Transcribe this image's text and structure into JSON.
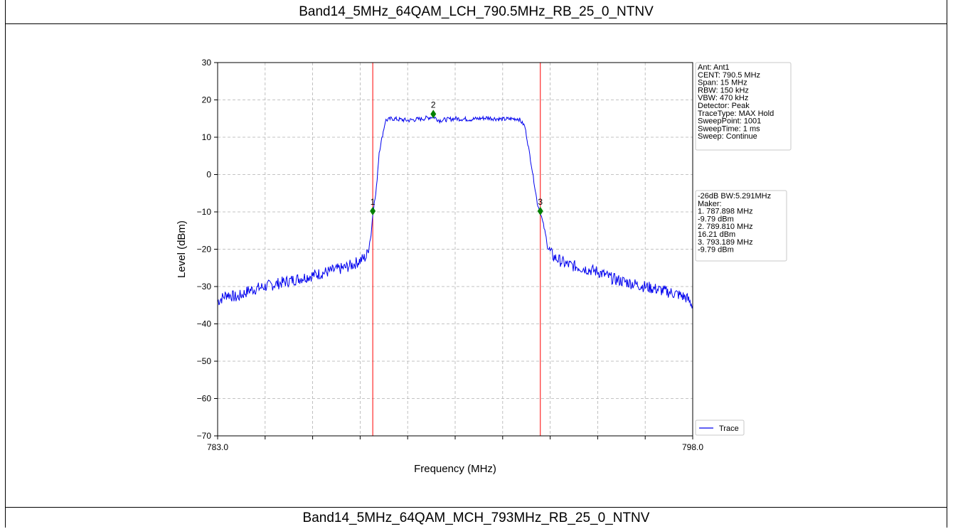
{
  "header": {
    "title": "Band14_5MHz_64QAM_LCH_790.5MHz_RB_25_0_NTNV"
  },
  "footer": {
    "title": "Band14_5MHz_64QAM_MCH_793MHz_RB_25_0_NTNV"
  },
  "colors": {
    "trace": "#0000ee",
    "marker": "#008000",
    "line": "#ff0000",
    "grid": "#b0b0b0"
  },
  "chart_data": {
    "type": "line",
    "xlabel": "Frequency (MHz)",
    "ylabel": "Level (dBm)",
    "xlim": [
      783.0,
      798.0
    ],
    "ylim": [
      -70,
      30
    ],
    "x_tick_labels": [
      "783.0",
      "798.0"
    ],
    "x_minor_ticks": [
      784.5,
      786.0,
      787.5,
      789.0,
      790.5,
      792.0,
      793.5,
      795.0,
      796.5
    ],
    "y_ticks": [
      30,
      20,
      10,
      0,
      -10,
      -20,
      -30,
      -40,
      -50,
      -60,
      -70
    ],
    "grid": true,
    "legend": {
      "position": "bottom-right",
      "entries": [
        "Trace"
      ]
    },
    "series": [
      {
        "name": "Trace",
        "x": [
          783.0,
          783.3,
          783.6,
          784.0,
          784.5,
          785.0,
          785.5,
          786.0,
          786.5,
          787.0,
          787.3,
          787.5,
          787.7,
          787.85,
          787.9,
          788.0,
          788.1,
          788.3,
          788.5,
          789.0,
          789.5,
          789.81,
          790.0,
          790.5,
          791.0,
          791.5,
          792.0,
          792.5,
          792.7,
          792.9,
          793.1,
          793.19,
          793.3,
          793.45,
          793.6,
          793.8,
          794.0,
          794.5,
          795.0,
          795.5,
          796.0,
          796.5,
          797.0,
          797.5,
          797.8,
          798.0
        ],
        "y": [
          -34,
          -32,
          -33,
          -31,
          -30,
          -29,
          -28,
          -27,
          -26,
          -25,
          -24,
          -23,
          -22,
          -16,
          -10,
          -5,
          6,
          14.5,
          15,
          14.5,
          15,
          15.5,
          14.5,
          15,
          14.8,
          15.2,
          14.8,
          15,
          13,
          3,
          -8,
          -10,
          -14,
          -20,
          -22,
          -23,
          -24,
          -25,
          -26,
          -28,
          -29,
          -30,
          -31,
          -32,
          -33,
          -35
        ]
      }
    ],
    "markers": [
      {
        "label": "1",
        "x": 787.898,
        "y": -9.79
      },
      {
        "label": "2",
        "x": 789.81,
        "y": 16.21
      },
      {
        "label": "3",
        "x": 793.189,
        "y": -9.79
      }
    ],
    "vlines": [
      787.898,
      793.189
    ],
    "info_box": [
      "Ant: Ant1",
      "CENT: 790.5 MHz",
      "Span: 15 MHz",
      "RBW: 150 kHz",
      "VBW: 470 kHz",
      "Detector: Peak",
      "TraceType: MAX Hold",
      "SweepPoint: 1001",
      "SweepTime: 1 ms",
      "Sweep: Continue"
    ],
    "marker_box": [
      "-26dB BW:5.291MHz",
      "Maker:",
      "1. 787.898 MHz",
      "    -9.79 dBm",
      "2. 789.810 MHz",
      "    16.21 dBm",
      "3. 793.189 MHz",
      "    -9.79 dBm"
    ]
  }
}
